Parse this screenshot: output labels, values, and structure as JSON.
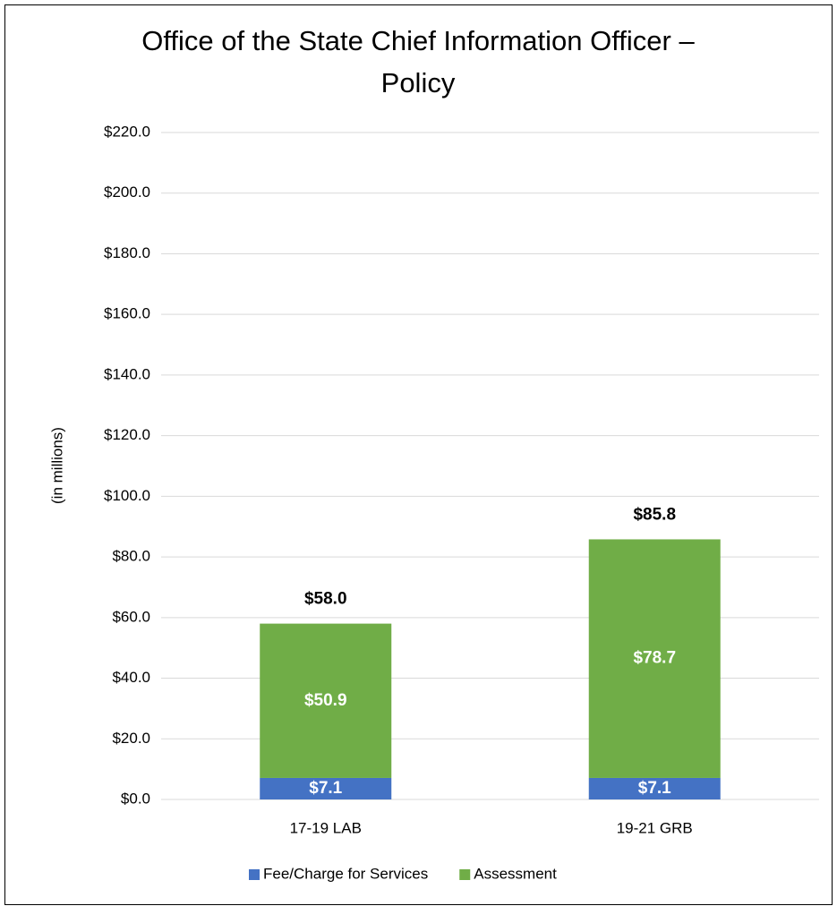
{
  "chart_data": {
    "type": "stacked_bar",
    "title": "Office of the State Chief Information Officer – Policy",
    "y_label": "(in millions)",
    "categories": [
      "17-19 LAB",
      "19-21 GRB"
    ],
    "series": [
      {
        "name": "Fee/Charge for Services",
        "color": "#4472c4",
        "values": [
          7.1,
          7.1
        ],
        "value_labels": [
          "$7.1",
          "$7.1"
        ]
      },
      {
        "name": "Assessment",
        "color": "#70ad47",
        "values": [
          50.9,
          78.7
        ],
        "value_labels": [
          "$50.9",
          "$78.7"
        ]
      }
    ],
    "totals": [
      58.0,
      85.8
    ],
    "total_labels": [
      "$58.0",
      "$85.8"
    ],
    "ylim": [
      0,
      220
    ],
    "yticks": [
      {
        "value": 0,
        "label": "$0.0"
      },
      {
        "value": 20,
        "label": "$20.0"
      },
      {
        "value": 40,
        "label": "$40.0"
      },
      {
        "value": 60,
        "label": "$60.0"
      },
      {
        "value": 80,
        "label": "$80.0"
      },
      {
        "value": 100,
        "label": "$100.0"
      },
      {
        "value": 120,
        "label": "$120.0"
      },
      {
        "value": 140,
        "label": "$140.0"
      },
      {
        "value": 160,
        "label": "$160.0"
      },
      {
        "value": 180,
        "label": "$180.0"
      },
      {
        "value": 200,
        "label": "$200.0"
      },
      {
        "value": 220,
        "label": "$220.0"
      }
    ],
    "grid": true,
    "legend": "bottom"
  }
}
